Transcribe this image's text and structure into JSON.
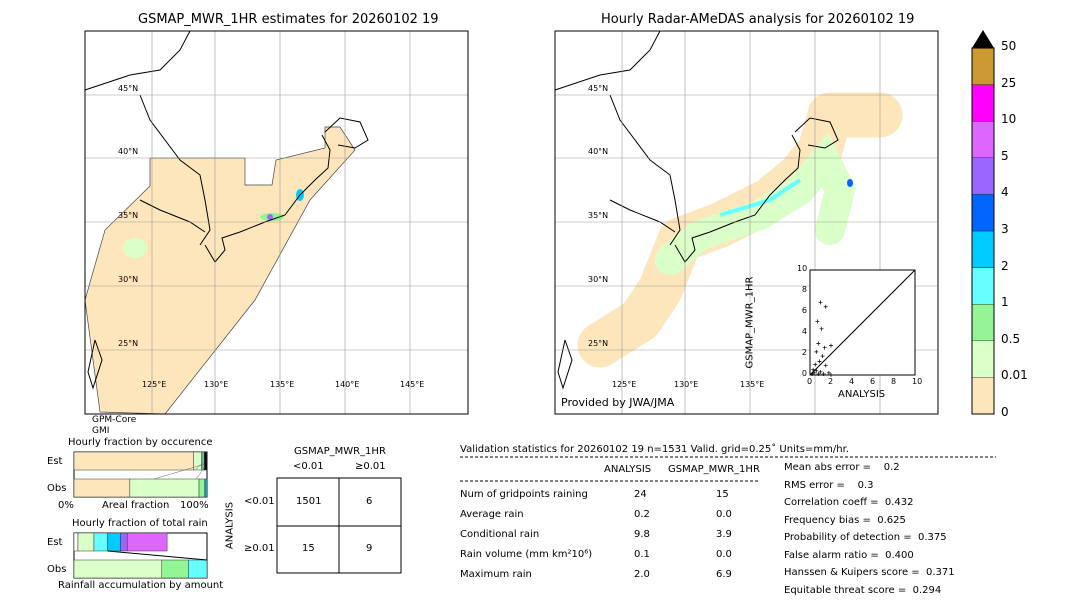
{
  "left_map": {
    "title": "GSMAP_MWR_1HR estimates for 20260102 19",
    "lat_labels": [
      "45°N",
      "40°N",
      "35°N",
      "30°N",
      "25°N"
    ],
    "lon_labels": [
      "125°E",
      "130°E",
      "135°E",
      "140°E",
      "145°E"
    ],
    "sensor_line1": "GPM-Core",
    "sensor_line2": "GMI"
  },
  "right_map": {
    "title": "Hourly Radar-AMeDAS analysis for 20260102 19",
    "lat_labels": [
      "45°N",
      "40°N",
      "35°N",
      "30°N",
      "25°N"
    ],
    "lon_labels": [
      "125°E",
      "130°E",
      "135°E"
    ],
    "credit": "Provided by JWA/JMA"
  },
  "colorbar": {
    "ticks": [
      "0",
      "0.01",
      "0.5",
      "1",
      "2",
      "3",
      "4",
      "5",
      "10",
      "25",
      "50"
    ],
    "colors": [
      "#fee6bc",
      "#dbffc8",
      "#93f593",
      "#66ffff",
      "#00ccff",
      "#0066ff",
      "#9966ff",
      "#dd66ff",
      "#ff00ff",
      "#cc9933"
    ],
    "extend_color": "#000000"
  },
  "chart_data": [
    {
      "type": "scatter",
      "xlabel": "ANALYSIS",
      "ylabel": "GSMAP_MWR_1HR",
      "xlim": [
        0,
        10
      ],
      "ylim": [
        0,
        10
      ],
      "ticks": [
        "0",
        "2",
        "4",
        "6",
        "8",
        "10"
      ],
      "points": [
        [
          1.0,
          6.9
        ],
        [
          1.5,
          6.5
        ],
        [
          0.7,
          5.1
        ],
        [
          1.1,
          4.4
        ],
        [
          0.8,
          3.0
        ],
        [
          1.4,
          2.6
        ],
        [
          2.0,
          2.8
        ],
        [
          0.6,
          2.2
        ],
        [
          1.2,
          1.8
        ],
        [
          0.9,
          1.3
        ],
        [
          0.5,
          1.0
        ],
        [
          1.5,
          0.9
        ],
        [
          0.3,
          0.5
        ],
        [
          0.6,
          0.4
        ],
        [
          1.0,
          0.3
        ],
        [
          1.8,
          0.2
        ],
        [
          0.2,
          0.1
        ],
        [
          0.4,
          0.2
        ],
        [
          0.8,
          0.1
        ],
        [
          1.3,
          0.1
        ],
        [
          2.0,
          0.0
        ]
      ]
    },
    {
      "type": "bar",
      "title": "Hourly fraction by occurence",
      "xlabel": "Areal fraction",
      "x_left": "0%",
      "x_right": "100%",
      "categories": [
        "Est",
        "Obs"
      ],
      "series": [
        {
          "category": "Est",
          "fractions": [
            0.9,
            0.06,
            0.01,
            0.01,
            0.02
          ]
        },
        {
          "category": "Obs",
          "fractions": [
            0.42,
            0.52,
            0.04,
            0.01,
            0.01
          ]
        }
      ]
    },
    {
      "type": "bar",
      "title": "Hourly fraction of total rain",
      "xlabel": "Rainfall accumulation by amount",
      "categories": [
        "Est",
        "Obs"
      ],
      "series": [
        {
          "category": "Est",
          "fractions": [
            0.03,
            0.12,
            0.1,
            0.1,
            0.05,
            0.3
          ]
        },
        {
          "category": "Obs",
          "fractions": [
            0.66,
            0.2,
            0.14
          ]
        }
      ]
    }
  ],
  "contingency": {
    "title": "GSMAP_MWR_1HR",
    "col_labels": [
      "<0.01",
      "≥0.01"
    ],
    "row_axis": "ANALYSIS",
    "row_labels": [
      "<0.01",
      "≥0.01"
    ],
    "cells": [
      [
        "1501",
        "6"
      ],
      [
        "15",
        "9"
      ]
    ]
  },
  "stats": {
    "header": "Validation statistics for 20260102 19  n=1531 Valid. grid=0.25˚ Units=mm/hr.",
    "col1": "ANALYSIS",
    "col2": "GSMAP_MWR_1HR",
    "rows": [
      {
        "label": "Num of gridpoints raining",
        "a": "24",
        "b": "15"
      },
      {
        "label": "Average rain",
        "a": "0.2",
        "b": "0.0"
      },
      {
        "label": "Conditional rain",
        "a": "9.8",
        "b": "3.9"
      },
      {
        "label": "Rain volume (mm km²10⁶)",
        "a": "0.1",
        "b": "0.0"
      },
      {
        "label": "Maximum rain",
        "a": "2.0",
        "b": "6.9"
      }
    ],
    "scores": [
      "Mean abs error =    0.2",
      "RMS error =    0.3",
      "Correlation coeff =  0.432",
      "Frequency bias =  0.625",
      "Probability of detection =  0.375",
      "False alarm ratio =  0.400",
      "Hanssen & Kuipers score =  0.371",
      "Equitable threat score =  0.294"
    ]
  }
}
